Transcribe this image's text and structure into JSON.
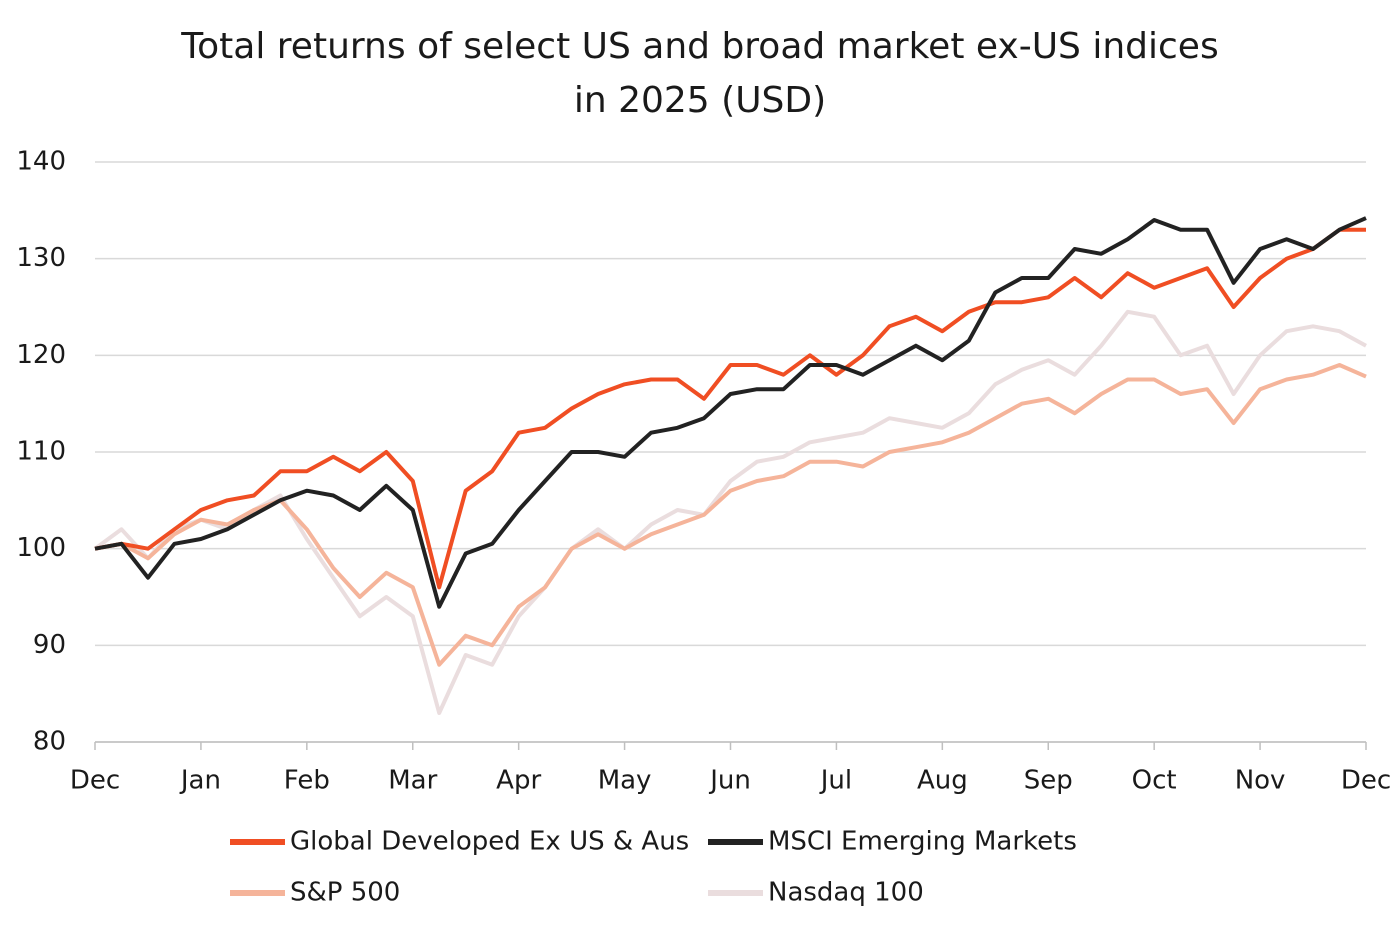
{
  "chart_data": {
    "type": "line",
    "title": [
      "Total returns of select US and broad market ex-US indices",
      "in 2025 (USD)"
    ],
    "categories": [
      "Dec",
      null,
      null,
      null,
      "Jan",
      null,
      null,
      null,
      "Feb",
      null,
      null,
      null,
      "Mar",
      null,
      null,
      null,
      "Apr",
      null,
      null,
      null,
      "May",
      null,
      null,
      null,
      "Jun",
      null,
      null,
      null,
      "Jul",
      null,
      null,
      null,
      "Aug",
      null,
      null,
      null,
      "Sep",
      null,
      null,
      null,
      "Oct",
      null,
      null,
      null,
      "Nov",
      null,
      null,
      null,
      "Dec"
    ],
    "series": [
      {
        "name": "Nasdaq 100",
        "color": "#eaddde",
        "values": [
          100,
          102,
          99,
          102,
          103,
          102,
          104,
          105.5,
          101,
          97,
          93,
          95,
          93,
          83,
          89,
          88,
          93,
          96,
          100,
          102,
          100,
          102.5,
          104,
          103.5,
          107,
          109,
          109.5,
          111,
          111.5,
          112,
          113.5,
          113,
          112.5,
          114,
          117,
          118.5,
          119.5,
          118,
          121,
          124.5,
          124,
          120,
          121,
          116,
          120,
          122.5,
          123,
          122.5,
          121
        ]
      },
      {
        "name": "S&P 500",
        "color": "#f5b49a",
        "values": [
          100,
          100.5,
          99,
          101.5,
          103,
          102.5,
          104,
          105,
          102,
          98,
          95,
          97.5,
          96,
          88,
          91,
          90,
          94,
          96,
          100,
          101.5,
          100,
          101.5,
          102.5,
          103.5,
          106,
          107,
          107.5,
          109,
          109,
          108.5,
          110,
          110.5,
          111,
          112,
          113.5,
          115,
          115.5,
          114,
          116,
          117.5,
          117.5,
          116,
          116.5,
          113,
          116.5,
          117.5,
          118,
          119,
          117.8
        ]
      },
      {
        "name": "Global Developed Ex US & Aus",
        "color": "#f04e23",
        "values": [
          100,
          100.5,
          100,
          102,
          104,
          105,
          105.5,
          108,
          108,
          109.5,
          108,
          110,
          107,
          96,
          106,
          108,
          112,
          112.5,
          114.5,
          116,
          117,
          117.5,
          117.5,
          115.5,
          119,
          119,
          118,
          120,
          118,
          120,
          123,
          124,
          122.5,
          124.5,
          125.5,
          125.5,
          126,
          128,
          126,
          128.5,
          127,
          128,
          129,
          125,
          128,
          130,
          131,
          133,
          133
        ]
      },
      {
        "name": "MSCI Emerging Markets",
        "color": "#222222",
        "values": [
          100,
          100.5,
          97,
          100.5,
          101,
          102,
          103.5,
          105,
          106,
          105.5,
          104,
          106.5,
          104,
          94,
          99.5,
          100.5,
          104,
          107,
          110,
          110,
          109.5,
          112,
          112.5,
          113.5,
          116,
          116.5,
          116.5,
          119,
          119,
          118,
          119.5,
          121,
          119.5,
          121.5,
          126.5,
          128,
          128,
          131,
          130.5,
          132,
          134,
          133,
          133,
          127.5,
          131,
          132,
          131,
          133,
          134.2
        ]
      }
    ],
    "legend_order": [
      2,
      3,
      1,
      0
    ],
    "ylim": [
      80,
      140
    ],
    "yticks": [
      80,
      90,
      100,
      110,
      120,
      130,
      140
    ],
    "grid": true
  }
}
